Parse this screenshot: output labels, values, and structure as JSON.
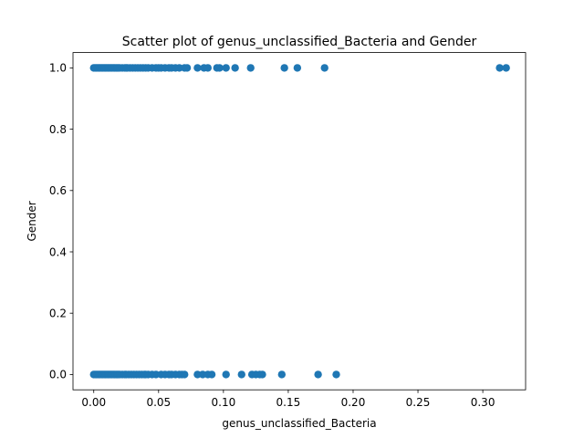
{
  "chart_data": {
    "type": "scatter",
    "title": "Scatter plot of genus_unclassified_Bacteria and Gender",
    "xlabel": "genus_unclassified_Bacteria",
    "ylabel": "Gender",
    "xlim": [
      -0.016,
      0.333
    ],
    "ylim": [
      -0.05,
      1.05
    ],
    "xticks": [
      "0.00",
      "0.05",
      "0.10",
      "0.15",
      "0.20",
      "0.25",
      "0.30"
    ],
    "xtick_values": [
      0,
      0.05,
      0.1,
      0.15,
      0.2,
      0.25,
      0.3
    ],
    "yticks": [
      "0.0",
      "0.2",
      "0.4",
      "0.6",
      "0.8",
      "1.0"
    ],
    "ytick_values": [
      0,
      0.2,
      0.4,
      0.6,
      0.8,
      1.0
    ],
    "grid": false,
    "marker_color": "#1f77b4",
    "series": [
      {
        "x": [
          0.0,
          0.001,
          0.002,
          0.003,
          0.004,
          0.005,
          0.006,
          0.007,
          0.008,
          0.009,
          0.01,
          0.011,
          0.012,
          0.013,
          0.014,
          0.015,
          0.016,
          0.017,
          0.018,
          0.019,
          0.02,
          0.022,
          0.024,
          0.025,
          0.026,
          0.028,
          0.03,
          0.032,
          0.034,
          0.036,
          0.038,
          0.04,
          0.042,
          0.045,
          0.048,
          0.05,
          0.052,
          0.055,
          0.058,
          0.06,
          0.063,
          0.066,
          0.07,
          0.072,
          0.08,
          0.085,
          0.088,
          0.095,
          0.097,
          0.102,
          0.109,
          0.121,
          0.147,
          0.157,
          0.178,
          0.313,
          0.318
        ],
        "y": [
          1,
          1,
          1,
          1,
          1,
          1,
          1,
          1,
          1,
          1,
          1,
          1,
          1,
          1,
          1,
          1,
          1,
          1,
          1,
          1,
          1,
          1,
          1,
          1,
          1,
          1,
          1,
          1,
          1,
          1,
          1,
          1,
          1,
          1,
          1,
          1,
          1,
          1,
          1,
          1,
          1,
          1,
          1,
          1,
          1,
          1,
          1,
          1,
          1,
          1,
          1,
          1,
          1,
          1,
          1,
          1,
          1
        ]
      },
      {
        "x": [
          0.0,
          0.001,
          0.002,
          0.003,
          0.004,
          0.005,
          0.006,
          0.007,
          0.008,
          0.009,
          0.01,
          0.011,
          0.012,
          0.013,
          0.014,
          0.015,
          0.016,
          0.017,
          0.018,
          0.019,
          0.02,
          0.022,
          0.024,
          0.025,
          0.027,
          0.029,
          0.031,
          0.033,
          0.035,
          0.037,
          0.039,
          0.04,
          0.042,
          0.045,
          0.048,
          0.052,
          0.055,
          0.058,
          0.06,
          0.063,
          0.066,
          0.068,
          0.07,
          0.08,
          0.084,
          0.088,
          0.091,
          0.102,
          0.114,
          0.122,
          0.125,
          0.128,
          0.13,
          0.145,
          0.173,
          0.187
        ],
        "y": [
          0,
          0,
          0,
          0,
          0,
          0,
          0,
          0,
          0,
          0,
          0,
          0,
          0,
          0,
          0,
          0,
          0,
          0,
          0,
          0,
          0,
          0,
          0,
          0,
          0,
          0,
          0,
          0,
          0,
          0,
          0,
          0,
          0,
          0,
          0,
          0,
          0,
          0,
          0,
          0,
          0,
          0,
          0,
          0,
          0,
          0,
          0,
          0,
          0,
          0,
          0,
          0,
          0,
          0,
          0,
          0
        ]
      }
    ]
  }
}
